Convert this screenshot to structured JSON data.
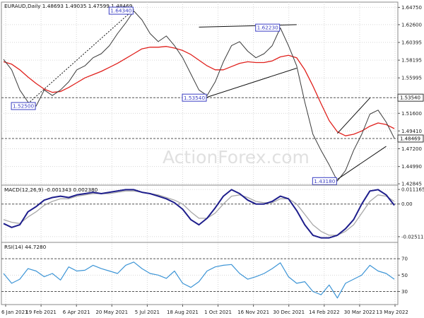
{
  "chart_data": [
    {
      "type": "line",
      "header": "EURAUD,Daily  1.48693 1.49035 1.47599 1.48469",
      "watermark": "ActionForex.com",
      "ylim": [
        1.4268,
        1.654
      ],
      "y_ticks": [
        "1.64750",
        "1.62600",
        "1.60395",
        "1.58195",
        "1.55995",
        "1.53540",
        "1.51600",
        "1.49410",
        "1.47200",
        "1.44990",
        "1.42845"
      ],
      "x_ticks": [
        "6 Jan 2021",
        "19 Feb 2021",
        "6 Apr 2021",
        "20 May 2021",
        "5 Jul 2021",
        "18 Aug 2021",
        "1 Oct 2021",
        "16 Nov 2021",
        "30 Dec 2021",
        "14 Feb 2022",
        "30 Mar 2022",
        "13 May 2022"
      ],
      "series": [
        {
          "values": [
            1.583,
            1.57,
            1.545,
            1.53,
            1.525,
            1.545,
            1.538,
            1.545,
            1.555,
            1.57,
            1.575,
            1.585,
            1.59,
            1.6,
            1.615,
            1.628,
            1.643,
            1.632,
            1.615,
            1.605,
            1.612,
            1.6,
            1.585,
            1.565,
            1.545,
            1.538,
            1.555,
            1.58,
            1.6,
            1.605,
            1.593,
            1.585,
            1.59,
            1.6,
            1.622,
            1.6,
            1.575,
            1.53,
            1.49,
            1.47,
            1.452,
            1.432,
            1.445,
            1.47,
            1.49,
            1.515,
            1.52,
            1.505,
            1.485
          ]
        },
        {
          "values": [
            1.58,
            1.577,
            1.57,
            1.561,
            1.553,
            1.546,
            1.542,
            1.543,
            1.548,
            1.554,
            1.56,
            1.564,
            1.568,
            1.573,
            1.578,
            1.584,
            1.59,
            1.596,
            1.598,
            1.598,
            1.599,
            1.597,
            1.594,
            1.589,
            1.582,
            1.575,
            1.57,
            1.57,
            1.574,
            1.578,
            1.58,
            1.579,
            1.579,
            1.581,
            1.586,
            1.588,
            1.585,
            1.57,
            1.55,
            1.528,
            1.507,
            1.493,
            1.488,
            1.49,
            1.494,
            1.5,
            1.504,
            1.502,
            1.497
          ]
        }
      ],
      "callouts": [
        "1.64340",
        "1.62230",
        "1.53540",
        "1.52500",
        "1.43180"
      ],
      "level_lines": [
        "1.53540",
        "1.48469"
      ],
      "last_price": "1.48469"
    },
    {
      "type": "line",
      "name": "MACD(12,26,9) -0.001343 0.002380",
      "ylim": [
        -0.0295,
        0.0145
      ],
      "y_ticks": [
        "0.011165",
        "0.00",
        "-0.025117"
      ],
      "series": [
        {
          "values": [
            -0.015,
            -0.018,
            -0.016,
            -0.006,
            -0.002,
            0.003,
            0.005,
            0.006,
            0.005,
            0.007,
            0.008,
            0.009,
            0.008,
            0.009,
            0.01,
            0.011,
            0.011,
            0.009,
            0.008,
            0.006,
            0.004,
            0.001,
            -0.004,
            -0.012,
            -0.016,
            -0.011,
            -0.003,
            0.006,
            0.011,
            0.008,
            0.003,
            0.0,
            0.0,
            0.002,
            0.006,
            0.004,
            -0.005,
            -0.016,
            -0.024,
            -0.026,
            -0.026,
            -0.024,
            -0.019,
            -0.012,
            0.0,
            0.01,
            0.011,
            0.007,
            -0.001
          ]
        },
        {
          "values": [
            -0.012,
            -0.014,
            -0.015,
            -0.01,
            -0.006,
            -0.001,
            0.002,
            0.004,
            0.004,
            0.006,
            0.007,
            0.008,
            0.008,
            0.008,
            0.009,
            0.01,
            0.01,
            0.009,
            0.008,
            0.007,
            0.005,
            0.003,
            0.0,
            -0.006,
            -0.011,
            -0.011,
            -0.007,
            0.0,
            0.006,
            0.007,
            0.005,
            0.002,
            0.001,
            0.001,
            0.004,
            0.004,
            0.0,
            -0.008,
            -0.016,
            -0.021,
            -0.024,
            -0.024,
            -0.021,
            -0.016,
            -0.007,
            0.002,
            0.007,
            0.006,
            0.002
          ]
        }
      ]
    },
    {
      "type": "line",
      "name": "RSI(14) 44.7280",
      "ylim": [
        14,
        90
      ],
      "y_ticks": [
        "70",
        "50",
        "30"
      ],
      "series": [
        {
          "values": [
            52,
            40,
            45,
            58,
            55,
            48,
            52,
            44,
            60,
            55,
            56,
            62,
            58,
            55,
            52,
            62,
            66,
            58,
            52,
            50,
            46,
            55,
            40,
            35,
            42,
            55,
            60,
            62,
            63,
            52,
            45,
            48,
            52,
            58,
            65,
            48,
            40,
            42,
            30,
            26,
            38,
            22,
            40,
            45,
            50,
            62,
            55,
            52,
            45
          ]
        }
      ]
    }
  ]
}
